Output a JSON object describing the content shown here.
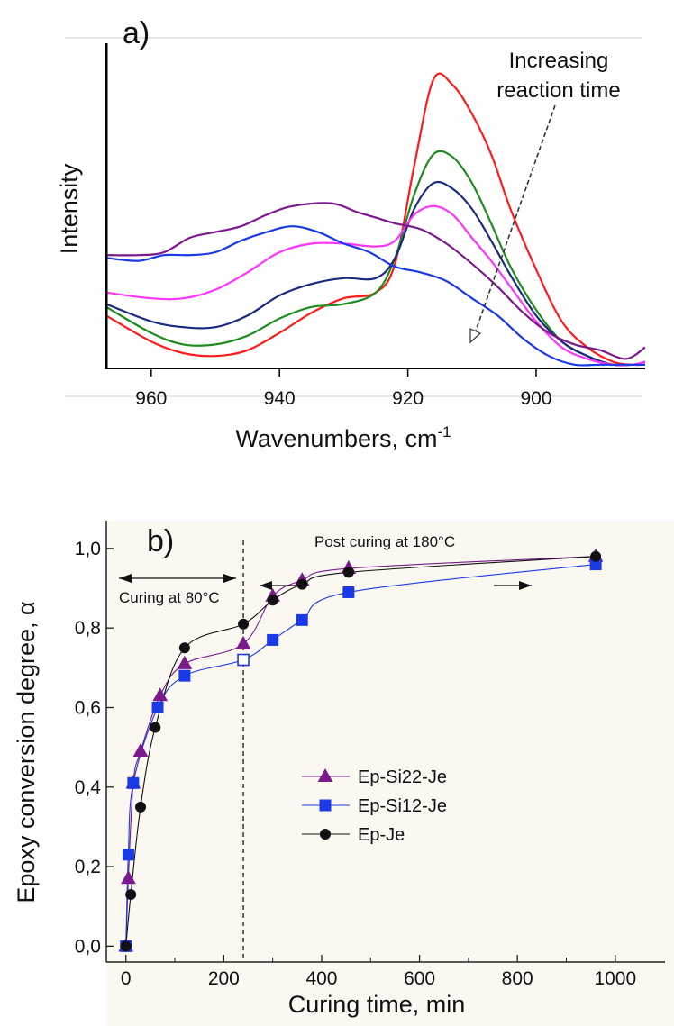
{
  "chart_data": [
    {
      "type": "line",
      "panel_label": "a)",
      "xlabel": "Wavenumbers, cm",
      "xlabel_sup": "-1",
      "ylabel": "Intensity",
      "xlim": [
        967,
        883
      ],
      "x_ticks": [
        960,
        940,
        920,
        900
      ],
      "ylim": [
        0,
        1.0
      ],
      "annotation": {
        "lines": [
          "Increasing",
          "reaction time"
        ]
      },
      "series": [
        {
          "color": "#ff1a1a",
          "x": [
            967,
            960,
            955,
            950,
            945,
            940,
            935,
            930,
            925,
            922,
            919,
            916,
            913,
            910,
            907,
            904,
            900,
            896,
            892,
            888,
            885,
            883
          ],
          "y": [
            0.18,
            0.09,
            0.05,
            0.04,
            0.06,
            0.12,
            0.19,
            0.24,
            0.26,
            0.36,
            0.7,
            1.0,
            0.98,
            0.88,
            0.74,
            0.55,
            0.34,
            0.16,
            0.07,
            0.02,
            0.01,
            0.01
          ]
        },
        {
          "color": "#1e8c1e",
          "x": [
            967,
            960,
            955,
            950,
            945,
            940,
            935,
            930,
            925,
            922,
            919,
            916,
            913,
            910,
            907,
            904,
            900,
            896,
            892,
            888,
            885,
            883
          ],
          "y": [
            0.21,
            0.12,
            0.08,
            0.08,
            0.11,
            0.17,
            0.21,
            0.22,
            0.26,
            0.38,
            0.6,
            0.74,
            0.73,
            0.64,
            0.5,
            0.35,
            0.2,
            0.09,
            0.04,
            0.01,
            0.01,
            0.01
          ]
        },
        {
          "color": "#1a2a80",
          "x": [
            967,
            960,
            955,
            950,
            945,
            940,
            935,
            930,
            925,
            922,
            919,
            916,
            913,
            910,
            907,
            904,
            900,
            896,
            892,
            888,
            885,
            883
          ],
          "y": [
            0.22,
            0.16,
            0.14,
            0.14,
            0.18,
            0.25,
            0.29,
            0.31,
            0.31,
            0.38,
            0.55,
            0.64,
            0.62,
            0.55,
            0.44,
            0.32,
            0.18,
            0.09,
            0.04,
            0.01,
            0.01,
            0.02
          ]
        },
        {
          "color": "#ff33ff",
          "x": [
            967,
            960,
            955,
            950,
            945,
            940,
            935,
            930,
            925,
            922,
            919,
            916,
            913,
            910,
            907,
            904,
            900,
            896,
            892,
            888,
            885,
            883
          ],
          "y": [
            0.26,
            0.24,
            0.24,
            0.27,
            0.33,
            0.4,
            0.43,
            0.43,
            0.42,
            0.44,
            0.53,
            0.56,
            0.53,
            0.45,
            0.37,
            0.28,
            0.16,
            0.07,
            0.03,
            0.01,
            0.01,
            0.02
          ]
        },
        {
          "color": "#7a1a8c",
          "x": [
            967,
            962,
            958,
            954,
            950,
            946,
            942,
            938,
            932,
            928,
            925,
            922,
            918,
            914,
            910,
            906,
            902,
            898,
            894,
            890,
            886,
            883
          ],
          "y": [
            0.39,
            0.39,
            0.4,
            0.45,
            0.47,
            0.49,
            0.53,
            0.56,
            0.57,
            0.54,
            0.52,
            0.5,
            0.48,
            0.43,
            0.36,
            0.28,
            0.19,
            0.12,
            0.08,
            0.06,
            0.03,
            0.07
          ]
        },
        {
          "color": "#1a3ae6",
          "x": [
            967,
            962,
            958,
            954,
            950,
            946,
            942,
            938,
            934,
            930,
            926,
            922,
            918,
            914,
            910,
            906,
            902,
            898,
            894,
            890,
            886,
            883
          ],
          "y": [
            0.38,
            0.37,
            0.39,
            0.39,
            0.4,
            0.44,
            0.47,
            0.49,
            0.47,
            0.43,
            0.4,
            0.35,
            0.33,
            0.3,
            0.24,
            0.18,
            0.1,
            0.04,
            0.01,
            0.01,
            0.01,
            0.01
          ]
        }
      ]
    },
    {
      "type": "line",
      "panel_label": "b)",
      "xlabel": "Curing time, min",
      "ylabel": "Epoxy conversion degree, α",
      "xlim": [
        -40,
        1120
      ],
      "ylim": [
        -0.04,
        1.07
      ],
      "x_ticks": [
        0,
        200,
        400,
        600,
        800,
        1000
      ],
      "y_ticks": [
        0.0,
        0.2,
        0.4,
        0.6,
        0.8,
        1.0
      ],
      "x_tick_labels": [
        "0",
        "200",
        "400",
        "600",
        "800",
        "1000"
      ],
      "y_tick_labels": [
        "0,0",
        "0,2",
        "0,4",
        "0,6",
        "0,8",
        "1,0"
      ],
      "vline_x": 240,
      "annotations": {
        "curing": "Curing at 80°C",
        "post_curing": "Post curing at 180°C"
      },
      "legend_position": "center",
      "series": [
        {
          "name": "Ep-Si22-Je",
          "color": "#7a1a8c",
          "marker": "triangle",
          "x": [
            0,
            5,
            15,
            30,
            70,
            120,
            240,
            300,
            360,
            455,
            960
          ],
          "y": [
            0.0,
            0.17,
            0.41,
            0.49,
            0.63,
            0.71,
            0.76,
            0.88,
            0.92,
            0.95,
            0.98
          ]
        },
        {
          "name": "Ep-Si12-Je",
          "color": "#1a3ae6",
          "marker": "square",
          "x": [
            0,
            5,
            15,
            65,
            120,
            240,
            300,
            360,
            455,
            960
          ],
          "y": [
            0.0,
            0.23,
            0.41,
            0.6,
            0.68,
            0.72,
            0.77,
            0.82,
            0.89,
            0.96
          ],
          "open_index": 5
        },
        {
          "name": "Ep-Je",
          "color": "#111111",
          "marker": "circle",
          "x": [
            0,
            10,
            30,
            60,
            120,
            240,
            300,
            360,
            455,
            960
          ],
          "y": [
            0.0,
            0.13,
            0.35,
            0.55,
            0.75,
            0.81,
            0.87,
            0.91,
            0.94,
            0.98
          ]
        }
      ]
    }
  ]
}
